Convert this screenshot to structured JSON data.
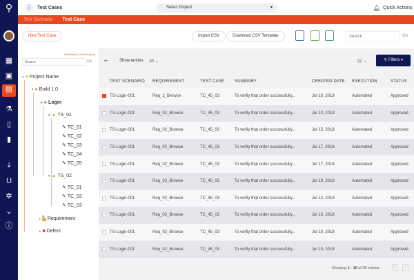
{
  "header": {
    "title": "Test Cases",
    "project_select": "Select Project",
    "quick_actions": "Quick Actions"
  },
  "tabs": [
    {
      "label": "Test Scenario",
      "active": false
    },
    {
      "label": "Test Case",
      "active": true
    }
  ],
  "toolbar": {
    "new_test_case": "New Test Case",
    "import_csv": "Import CSV",
    "download_csv": "Download CSV Template",
    "search_placeholder": "Search",
    "go": "Go"
  },
  "left": {
    "find_next": "Find Next",
    "find_previous": "Find Previous",
    "search_placeholder": "Search",
    "go": "Go"
  },
  "tree": {
    "project": "Project Name",
    "build": "Build 1.0",
    "login": "Login",
    "ts01": "TS_01",
    "ts01_cases": [
      "TC_01",
      "TC_02",
      "TC_03",
      "TC_04",
      "TC_05"
    ],
    "ts02": "TS_02",
    "ts02_cases": [
      "TC_01",
      "TC_02",
      "TC_03"
    ],
    "requirement": "Requirement",
    "defect": "Defect"
  },
  "table_controls": {
    "show_entries": "Show entries",
    "entries_value": "10",
    "filters": "Filters"
  },
  "columns": [
    "TEST SCENARIO",
    "REQUIREMENT",
    "TEST CASE",
    "SUMMARY",
    "CREATED DATE",
    "EXECUTION",
    "STATUS"
  ],
  "rows": [
    {
      "checked": true,
      "cells": [
        "TS-Login-001",
        "Req_2_Browse",
        "TC_45_03",
        "To verfiy that order successfully...",
        "Jul 10, 2018",
        "Automated",
        "Approved"
      ]
    },
    {
      "checked": false,
      "cells": [
        "TS-Login-001",
        "Req_02_Browse",
        "TC_45_03",
        "To verfiy that order successfully...",
        "Jul 10, 2018",
        "Automated",
        "Approved"
      ]
    },
    {
      "checked": false,
      "cells": [
        "TS-Login-001",
        "Req_02_Browse",
        "TC_45_03",
        "To verfiy that order successfully...",
        "Jul 15, 2018",
        "Automated",
        "Approved"
      ]
    },
    {
      "checked": false,
      "cells": [
        "TS-Login-001",
        "Req_02_Browse",
        "TC_45_03",
        "To verfiy that order successfully...",
        "Jul 17, 2018",
        "Automated",
        "Approved"
      ]
    },
    {
      "checked": false,
      "cells": [
        "TS-Login-001",
        "Req_02_Browse",
        "TC_45_03",
        "To verfiy that order successfully...",
        "Jul 17, 2018",
        "Automated",
        "Approved"
      ]
    },
    {
      "checked": false,
      "cells": [
        "TS-Login-001",
        "Req_02_Browse",
        "TC_45_03",
        "To verfiy that order successfully...",
        "Jul 19, 2018",
        "Automated",
        "Approved"
      ]
    },
    {
      "checked": false,
      "cells": [
        "TS-Login-001",
        "Req_02_Browse",
        "TC_45_03",
        "To verfiy that order successfully...",
        "Jul 12, 2018",
        "Automated",
        "Approved"
      ]
    },
    {
      "checked": false,
      "cells": [
        "TS-Login-001",
        "Req_02_Browse",
        "TC_45_03",
        "To verfiy that order successfully...",
        "Jul 10, 2018",
        "Automated",
        "Approved"
      ]
    },
    {
      "checked": false,
      "cells": [
        "TS-Login-001",
        "Req_02_Browse",
        "TC_45_03",
        "To verfiy that order successfully...",
        "Jul 10, 2018",
        "Automated",
        "Approved"
      ]
    },
    {
      "checked": false,
      "cells": [
        "TS-Login-001",
        "Req_02_Browse",
        "TC_45_03",
        "To verfiy that order successfully...",
        "Jul 10, 2018",
        "Automated",
        "Approved"
      ]
    }
  ],
  "pagination": {
    "showing": "Showing",
    "range": "1 - 10",
    "of": "of 30 entries"
  },
  "colors": {
    "navy": "#0f1654",
    "accent": "#e8481f"
  }
}
